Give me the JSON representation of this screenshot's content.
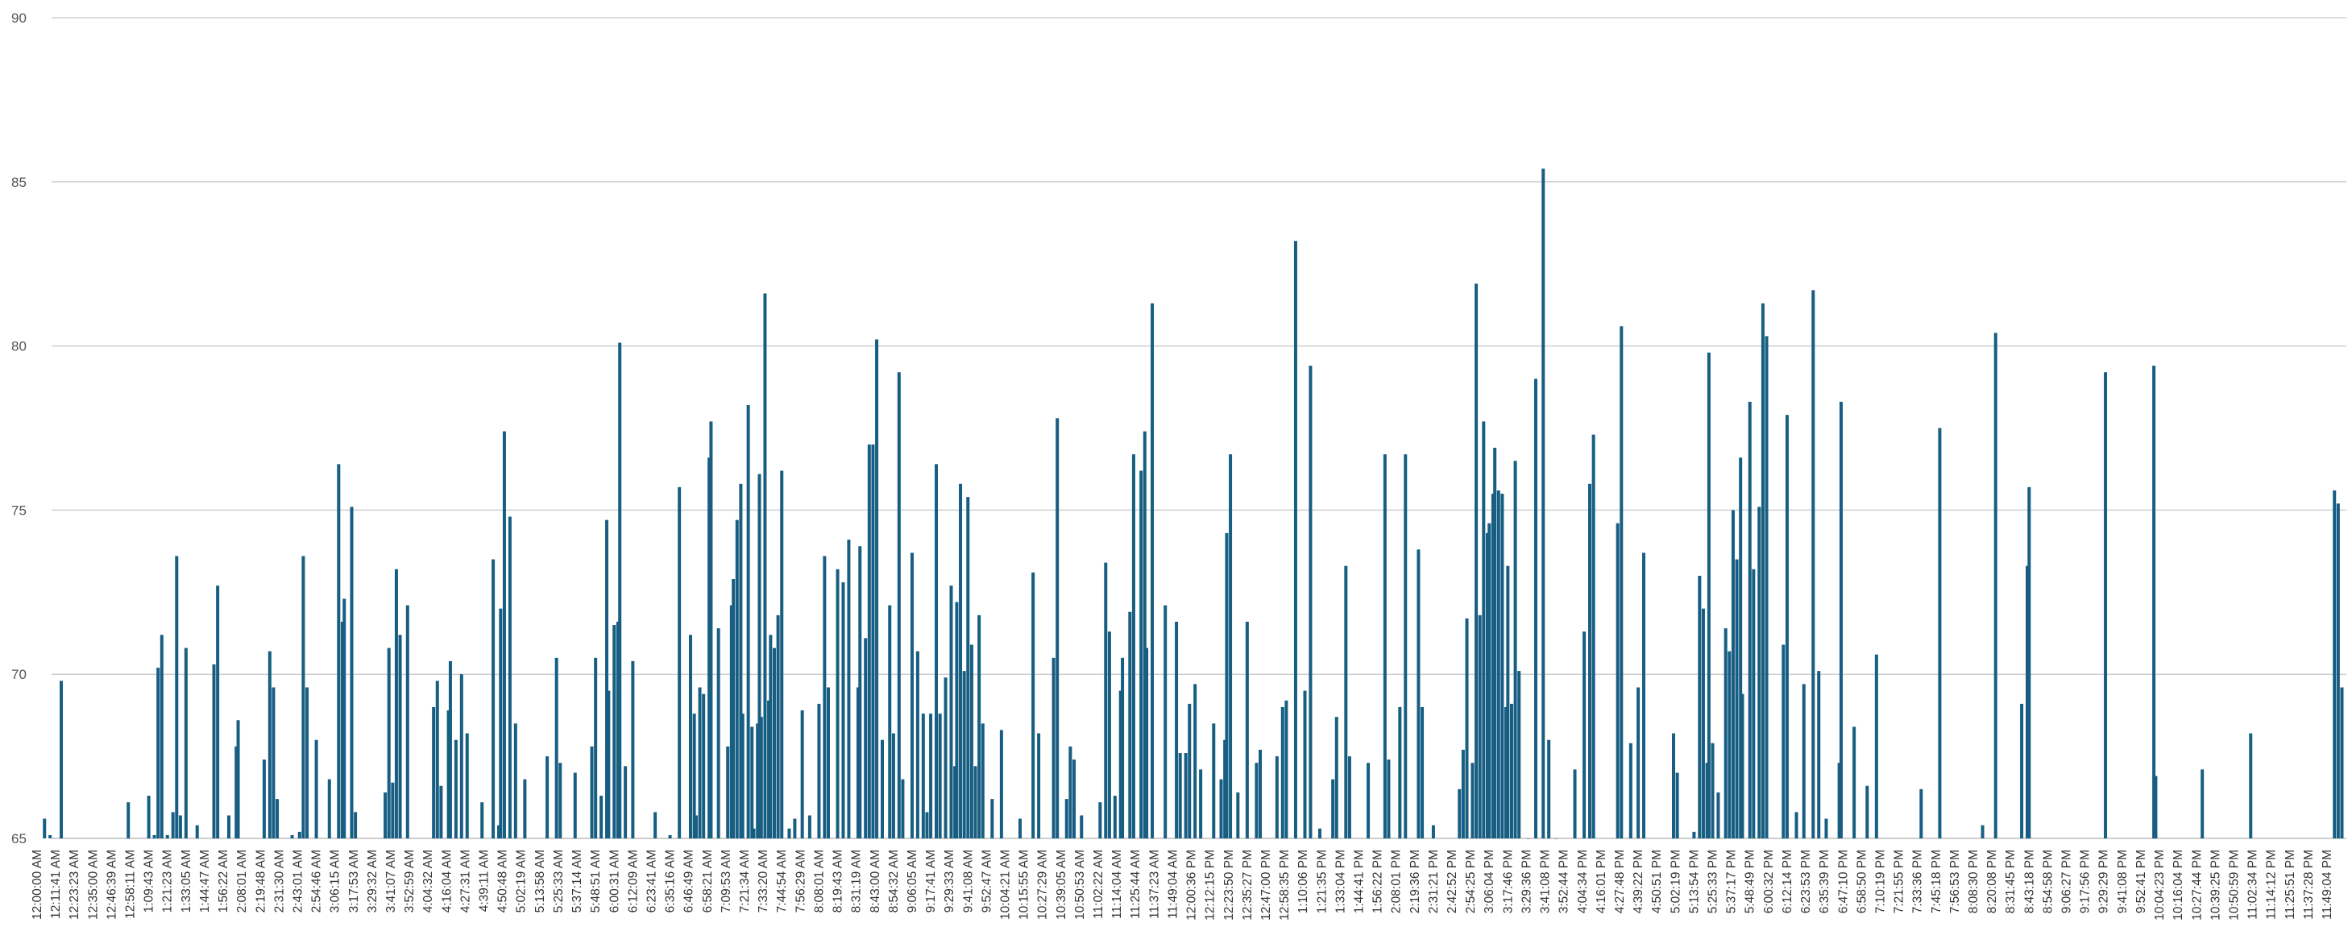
{
  "chart_data": {
    "type": "bar",
    "title": "",
    "xlabel": "",
    "ylabel": "",
    "ylim": [
      65,
      90
    ],
    "yticks": [
      65,
      70,
      75,
      80,
      85,
      90
    ],
    "grid": true,
    "legend": "none",
    "bar_color": "#175e82",
    "x_tick_labels": [
      "12:00:00 AM",
      "12:11:41 AM",
      "12:23:23 AM",
      "12:35:00 AM",
      "12:46:39 AM",
      "12:58:11 AM",
      "1:09:43 AM",
      "1:21:23 AM",
      "1:33:05 AM",
      "1:44:47 AM",
      "1:56:22 AM",
      "2:08:01 AM",
      "2:19:48 AM",
      "2:31:30 AM",
      "2:43:01 AM",
      "2:54:46 AM",
      "3:06:15 AM",
      "3:17:53 AM",
      "3:29:32 AM",
      "3:41:07 AM",
      "3:52:59 AM",
      "4:04:32 AM",
      "4:16:04 AM",
      "4:27:31 AM",
      "4:39:11 AM",
      "4:50:48 AM",
      "5:02:19 AM",
      "5:13:58 AM",
      "5:25:33 AM",
      "5:37:14 AM",
      "5:48:51 AM",
      "6:00:31 AM",
      "6:12:09 AM",
      "6:23:41 AM",
      "6:35:16 AM",
      "6:46:49 AM",
      "6:58:21 AM",
      "7:09:53 AM",
      "7:21:34 AM",
      "7:33:20 AM",
      "7:44:54 AM",
      "7:56:29 AM",
      "8:08:01 AM",
      "8:19:43 AM",
      "8:31:19 AM",
      "8:43:00 AM",
      "8:54:32 AM",
      "9:06:05 AM",
      "9:17:41 AM",
      "9:29:33 AM",
      "9:41:08 AM",
      "9:52:47 AM",
      "10:04:21 AM",
      "10:15:55 AM",
      "10:27:29 AM",
      "10:39:05 AM",
      "10:50:53 AM",
      "11:02:22 AM",
      "11:14:04 AM",
      "11:25:44 AM",
      "11:37:23 AM",
      "11:49:04 AM",
      "12:00:36 PM",
      "12:12:15 PM",
      "12:23:50 PM",
      "12:35:27 PM",
      "12:47:00 PM",
      "12:58:35 PM",
      "1:10:06 PM",
      "1:21:35 PM",
      "1:33:04 PM",
      "1:44:41 PM",
      "1:56:22 PM",
      "2:08:01 PM",
      "2:19:36 PM",
      "2:31:21 PM",
      "2:42:52 PM",
      "2:54:25 PM",
      "3:06:04 PM",
      "3:17:46 PM",
      "3:29:36 PM",
      "3:41:08 PM",
      "3:52:44 PM",
      "4:04:34 PM",
      "4:16:01 PM",
      "4:27:48 PM",
      "4:39:22 PM",
      "4:50:51 PM",
      "5:02:19 PM",
      "5:13:54 PM",
      "5:25:33 PM",
      "5:37:17 PM",
      "5:48:49 PM",
      "6:00:32 PM",
      "6:12:14 PM",
      "6:23:53 PM",
      "6:35:39 PM",
      "6:47:10 PM",
      "6:58:50 PM",
      "7:10:19 PM",
      "7:21:55 PM",
      "7:33:36 PM",
      "7:45:18 PM",
      "7:56:53 PM",
      "8:08:30 PM",
      "8:20:08 PM",
      "8:31:45 PM",
      "8:43:18 PM",
      "8:54:58 PM",
      "9:06:27 PM",
      "9:17:56 PM",
      "9:29:29 PM",
      "9:41:08 PM",
      "9:52:41 PM",
      "10:04:23 PM",
      "10:16:04 PM",
      "10:27:44 PM",
      "10:39:25 PM",
      "10:50:59 PM",
      "11:02:34 PM",
      "11:14:12 PM",
      "11:25:51 PM",
      "11:37:28 PM",
      "11:49:04 PM"
    ],
    "bars": [
      [
        0.4,
        65.6
      ],
      [
        0.7,
        65.1
      ],
      [
        1.3,
        69.8
      ],
      [
        4.9,
        66.1
      ],
      [
        6.0,
        66.3
      ],
      [
        6.3,
        65.1
      ],
      [
        6.5,
        70.2
      ],
      [
        6.7,
        71.2
      ],
      [
        7.0,
        65.1
      ],
      [
        7.3,
        65.8
      ],
      [
        7.5,
        73.6
      ],
      [
        7.7,
        65.7
      ],
      [
        8.0,
        70.8
      ],
      [
        8.6,
        65.4
      ],
      [
        9.5,
        70.3
      ],
      [
        9.7,
        72.7
      ],
      [
        10.3,
        65.7
      ],
      [
        10.7,
        67.8
      ],
      [
        10.8,
        68.6
      ],
      [
        12.2,
        67.4
      ],
      [
        12.5,
        70.7
      ],
      [
        12.7,
        69.6
      ],
      [
        12.9,
        66.2
      ],
      [
        13.7,
        65.1
      ],
      [
        14.1,
        65.2
      ],
      [
        14.3,
        73.6
      ],
      [
        14.5,
        69.6
      ],
      [
        15.0,
        68.0
      ],
      [
        15.7,
        66.8
      ],
      [
        16.2,
        76.4
      ],
      [
        16.4,
        71.6
      ],
      [
        16.5,
        72.3
      ],
      [
        16.9,
        75.1
      ],
      [
        17.1,
        65.8
      ],
      [
        18.7,
        66.4
      ],
      [
        18.9,
        70.8
      ],
      [
        19.1,
        66.7
      ],
      [
        19.3,
        73.2
      ],
      [
        19.5,
        71.2
      ],
      [
        19.9,
        72.1
      ],
      [
        21.3,
        69.0
      ],
      [
        21.5,
        69.8
      ],
      [
        21.7,
        66.6
      ],
      [
        22.1,
        68.9
      ],
      [
        22.2,
        70.4
      ],
      [
        22.5,
        68.0
      ],
      [
        22.8,
        70.0
      ],
      [
        23.1,
        68.2
      ],
      [
        23.9,
        66.1
      ],
      [
        24.5,
        73.5
      ],
      [
        24.8,
        65.4
      ],
      [
        24.9,
        72.0
      ],
      [
        25.1,
        77.4
      ],
      [
        25.4,
        74.8
      ],
      [
        25.7,
        68.5
      ],
      [
        26.2,
        66.8
      ],
      [
        27.4,
        67.5
      ],
      [
        27.9,
        70.5
      ],
      [
        28.1,
        67.3
      ],
      [
        28.9,
        67.0
      ],
      [
        29.8,
        67.8
      ],
      [
        30.0,
        70.5
      ],
      [
        30.3,
        66.3
      ],
      [
        30.6,
        74.7
      ],
      [
        30.7,
        69.5
      ],
      [
        31.0,
        71.5
      ],
      [
        31.2,
        71.6
      ],
      [
        31.3,
        80.1
      ],
      [
        31.6,
        67.2
      ],
      [
        32.0,
        70.4
      ],
      [
        33.2,
        65.8
      ],
      [
        34.0,
        65.1
      ],
      [
        34.5,
        75.7
      ],
      [
        35.1,
        71.2
      ],
      [
        35.3,
        68.8
      ],
      [
        35.4,
        65.7
      ],
      [
        35.6,
        69.6
      ],
      [
        35.8,
        69.4
      ],
      [
        36.1,
        76.6
      ],
      [
        36.2,
        77.7
      ],
      [
        36.6,
        71.4
      ],
      [
        37.1,
        67.8
      ],
      [
        37.3,
        72.1
      ],
      [
        37.4,
        72.9
      ],
      [
        37.6,
        74.7
      ],
      [
        37.8,
        75.8
      ],
      [
        37.9,
        68.8
      ],
      [
        38.2,
        78.2
      ],
      [
        38.4,
        68.4
      ],
      [
        38.5,
        65.3
      ],
      [
        38.7,
        68.5
      ],
      [
        38.8,
        76.1
      ],
      [
        38.9,
        68.7
      ],
      [
        39.1,
        81.6
      ],
      [
        39.3,
        69.2
      ],
      [
        39.4,
        71.2
      ],
      [
        39.6,
        70.8
      ],
      [
        39.8,
        71.8
      ],
      [
        40.0,
        76.2
      ],
      [
        40.4,
        65.3
      ],
      [
        40.7,
        65.6
      ],
      [
        41.1,
        68.9
      ],
      [
        41.5,
        65.7
      ],
      [
        42.0,
        69.1
      ],
      [
        42.3,
        73.6
      ],
      [
        42.5,
        69.6
      ],
      [
        43.0,
        73.2
      ],
      [
        43.3,
        72.8
      ],
      [
        43.6,
        74.1
      ],
      [
        44.1,
        69.6
      ],
      [
        44.2,
        73.9
      ],
      [
        44.5,
        71.1
      ],
      [
        44.7,
        77.0
      ],
      [
        44.9,
        77.0
      ],
      [
        45.1,
        80.2
      ],
      [
        45.4,
        68.0
      ],
      [
        45.8,
        72.1
      ],
      [
        46.0,
        68.2
      ],
      [
        46.3,
        79.2
      ],
      [
        46.5,
        66.8
      ],
      [
        47.0,
        73.7
      ],
      [
        47.3,
        70.7
      ],
      [
        47.6,
        68.8
      ],
      [
        47.8,
        65.8
      ],
      [
        48.0,
        68.8
      ],
      [
        48.3,
        76.4
      ],
      [
        48.5,
        68.8
      ],
      [
        48.8,
        69.9
      ],
      [
        49.1,
        72.7
      ],
      [
        49.3,
        67.2
      ],
      [
        49.4,
        72.2
      ],
      [
        49.6,
        75.8
      ],
      [
        49.8,
        70.1
      ],
      [
        50.0,
        75.4
      ],
      [
        50.2,
        70.9
      ],
      [
        50.4,
        67.2
      ],
      [
        50.6,
        71.8
      ],
      [
        50.8,
        68.5
      ],
      [
        51.3,
        66.2
      ],
      [
        51.8,
        68.3
      ],
      [
        52.8,
        65.6
      ],
      [
        53.5,
        73.1
      ],
      [
        53.8,
        68.2
      ],
      [
        54.6,
        70.5
      ],
      [
        54.8,
        77.8
      ],
      [
        55.3,
        66.2
      ],
      [
        55.5,
        67.8
      ],
      [
        55.7,
        67.4
      ],
      [
        56.1,
        65.7
      ],
      [
        57.1,
        66.1
      ],
      [
        57.4,
        73.4
      ],
      [
        57.6,
        71.3
      ],
      [
        57.9,
        66.3
      ],
      [
        58.2,
        69.5
      ],
      [
        58.3,
        70.5
      ],
      [
        58.7,
        71.9
      ],
      [
        58.9,
        76.7
      ],
      [
        59.3,
        76.2
      ],
      [
        59.5,
        77.4
      ],
      [
        59.6,
        70.8
      ],
      [
        59.9,
        81.3
      ],
      [
        60.6,
        72.1
      ],
      [
        61.2,
        71.6
      ],
      [
        61.4,
        67.6
      ],
      [
        61.7,
        67.6
      ],
      [
        61.9,
        69.1
      ],
      [
        62.2,
        69.7
      ],
      [
        62.5,
        67.1
      ],
      [
        63.2,
        68.5
      ],
      [
        63.6,
        66.8
      ],
      [
        63.8,
        68.0
      ],
      [
        63.9,
        74.3
      ],
      [
        64.1,
        76.7
      ],
      [
        64.5,
        66.4
      ],
      [
        65.0,
        71.6
      ],
      [
        65.5,
        67.3
      ],
      [
        65.7,
        67.7
      ],
      [
        66.6,
        67.5
      ],
      [
        66.9,
        69.0
      ],
      [
        67.1,
        69.2
      ],
      [
        67.6,
        83.2
      ],
      [
        68.1,
        69.5
      ],
      [
        68.4,
        79.4
      ],
      [
        68.9,
        65.3
      ],
      [
        69.6,
        66.8
      ],
      [
        69.8,
        68.7
      ],
      [
        70.3,
        73.3
      ],
      [
        70.5,
        67.5
      ],
      [
        71.5,
        67.3
      ],
      [
        72.4,
        76.7
      ],
      [
        72.6,
        67.4
      ],
      [
        73.2,
        69.0
      ],
      [
        73.5,
        76.7
      ],
      [
        74.2,
        73.8
      ],
      [
        74.4,
        69.0
      ],
      [
        75.0,
        65.4
      ],
      [
        76.4,
        66.5
      ],
      [
        76.6,
        67.7
      ],
      [
        76.8,
        71.7
      ],
      [
        77.1,
        67.3
      ],
      [
        77.3,
        81.9
      ],
      [
        77.5,
        71.8
      ],
      [
        77.7,
        77.7
      ],
      [
        77.9,
        74.3
      ],
      [
        78.0,
        74.6
      ],
      [
        78.2,
        75.5
      ],
      [
        78.3,
        76.9
      ],
      [
        78.5,
        75.6
      ],
      [
        78.7,
        75.5
      ],
      [
        78.9,
        69.0
      ],
      [
        79.0,
        73.3
      ],
      [
        79.2,
        69.1
      ],
      [
        79.4,
        76.5
      ],
      [
        79.6,
        70.1
      ],
      [
        80.1,
        65.0
      ],
      [
        80.5,
        79.0
      ],
      [
        80.9,
        85.4
      ],
      [
        81.2,
        68.0
      ],
      [
        81.6,
        65.0
      ],
      [
        82.6,
        67.1
      ],
      [
        83.1,
        71.3
      ],
      [
        83.4,
        75.8
      ],
      [
        83.6,
        77.3
      ],
      [
        84.9,
        74.6
      ],
      [
        85.1,
        80.6
      ],
      [
        85.6,
        67.9
      ],
      [
        86.0,
        69.6
      ],
      [
        86.3,
        73.7
      ],
      [
        87.9,
        68.2
      ],
      [
        88.1,
        67.0
      ],
      [
        89.0,
        65.2
      ],
      [
        89.3,
        73.0
      ],
      [
        89.5,
        72.0
      ],
      [
        89.7,
        67.3
      ],
      [
        89.8,
        79.8
      ],
      [
        90.0,
        67.9
      ],
      [
        90.3,
        66.4
      ],
      [
        90.7,
        71.4
      ],
      [
        90.9,
        70.7
      ],
      [
        91.1,
        75.0
      ],
      [
        91.3,
        73.5
      ],
      [
        91.5,
        76.6
      ],
      [
        91.6,
        69.4
      ],
      [
        92.0,
        78.3
      ],
      [
        92.2,
        73.2
      ],
      [
        92.5,
        75.1
      ],
      [
        92.7,
        81.3
      ],
      [
        92.9,
        80.3
      ],
      [
        93.8,
        70.9
      ],
      [
        94.0,
        77.9
      ],
      [
        94.5,
        65.8
      ],
      [
        94.9,
        69.7
      ],
      [
        95.4,
        81.7
      ],
      [
        95.7,
        70.1
      ],
      [
        96.1,
        65.6
      ],
      [
        96.8,
        67.3
      ],
      [
        96.9,
        78.3
      ],
      [
        97.6,
        68.4
      ],
      [
        98.3,
        66.6
      ],
      [
        98.8,
        70.6
      ],
      [
        101.2,
        66.5
      ],
      [
        102.2,
        77.5
      ],
      [
        104.5,
        65.4
      ],
      [
        105.2,
        80.4
      ],
      [
        106.6,
        69.1
      ],
      [
        106.9,
        73.3
      ],
      [
        107.0,
        75.7
      ],
      [
        111.1,
        79.2
      ],
      [
        113.7,
        79.4
      ],
      [
        113.8,
        66.9
      ],
      [
        116.3,
        67.1
      ],
      [
        118.9,
        68.2
      ],
      [
        123.4,
        75.6
      ],
      [
        123.6,
        75.2
      ],
      [
        123.8,
        69.6
      ]
    ]
  }
}
